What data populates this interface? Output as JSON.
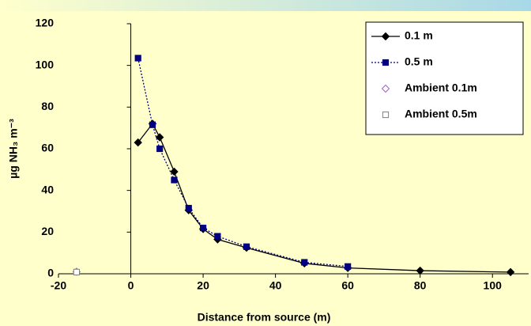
{
  "chart_data": {
    "type": "scatter",
    "x_label": "Distance from source (m)",
    "y_label": "µg NH₃ m⁻³",
    "xlim": [
      -20,
      110
    ],
    "xticks": [
      -20,
      0,
      20,
      40,
      60,
      80,
      100
    ],
    "ylim": [
      0,
      120
    ],
    "yticks": [
      0,
      20,
      40,
      60,
      80,
      100,
      120
    ],
    "legend": "upper right",
    "series": [
      {
        "name": "0.1 m",
        "color": "#000000",
        "marker": "diamond",
        "filled": true,
        "line": "solid",
        "x": [
          2,
          6,
          8,
          12,
          16,
          20,
          24,
          32,
          48,
          60,
          80,
          105
        ],
        "values": [
          63,
          72,
          65.5,
          49,
          30.5,
          21.5,
          16.5,
          12.5,
          5,
          2.8,
          1.5,
          0.8
        ]
      },
      {
        "name": "0.5 m",
        "color": "#000080",
        "marker": "square",
        "filled": true,
        "line": "dotted",
        "x": [
          2,
          6,
          8,
          12,
          16,
          20,
          24,
          32,
          48,
          60
        ],
        "values": [
          103.5,
          71.5,
          60,
          45,
          31.5,
          22,
          18,
          13,
          5.5,
          3.5
        ]
      },
      {
        "name": "Ambient 0.1m",
        "color": "#9966cc",
        "marker": "diamond",
        "filled": false,
        "line": "none",
        "x": [
          -15
        ],
        "values": [
          1
        ]
      },
      {
        "name": "Ambient 0.5m",
        "color": "#808080",
        "marker": "square",
        "filled": false,
        "line": "none",
        "x": [
          -15
        ],
        "values": [
          0.8
        ]
      }
    ]
  }
}
